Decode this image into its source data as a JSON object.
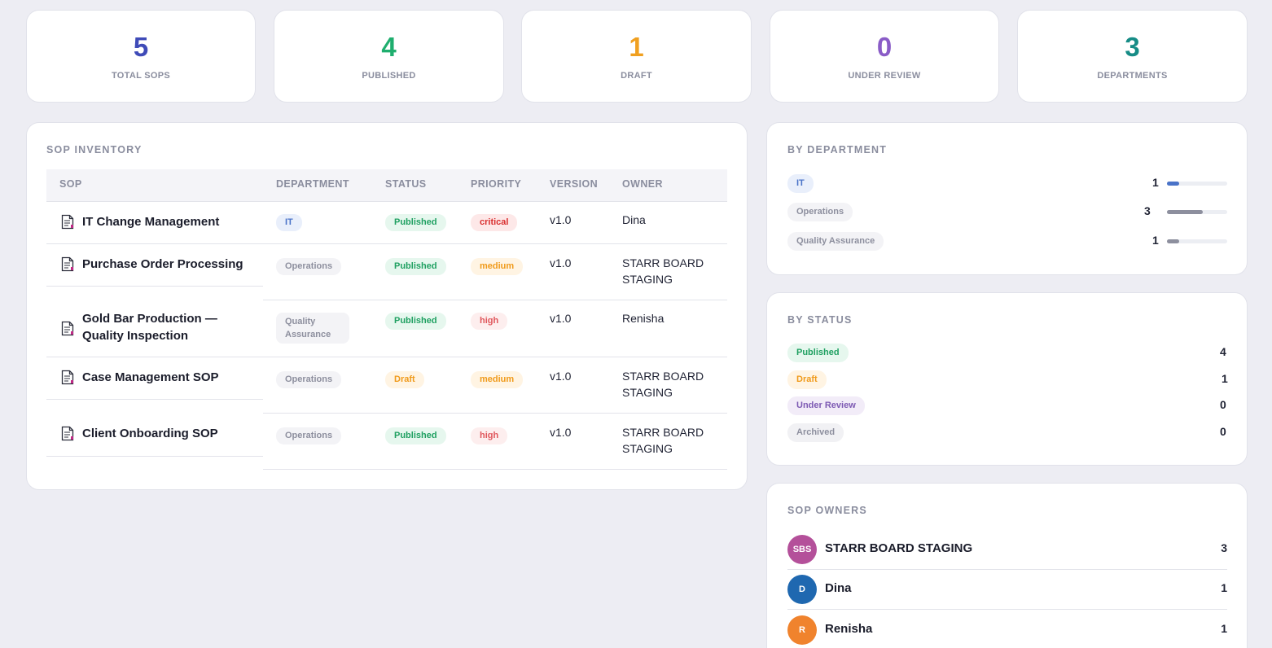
{
  "stats": [
    {
      "value": "5",
      "label": "TOTAL SOPS",
      "color": "#3f4bb8"
    },
    {
      "value": "4",
      "label": "PUBLISHED",
      "color": "#1fae6e"
    },
    {
      "value": "1",
      "label": "DRAFT",
      "color": "#f0a020"
    },
    {
      "value": "0",
      "label": "UNDER REVIEW",
      "color": "#8a5cc7"
    },
    {
      "value": "3",
      "label": "DEPARTMENTS",
      "color": "#168c86"
    }
  ],
  "inventory": {
    "title": "SOP INVENTORY",
    "columns": [
      "SOP",
      "DEPARTMENT",
      "STATUS",
      "PRIORITY",
      "VERSION",
      "OWNER"
    ],
    "rows": [
      {
        "name": "IT Change Management",
        "department": "IT",
        "status": "Published",
        "priority": "critical",
        "version": "v1.0",
        "owner": "Dina"
      },
      {
        "name": "Purchase Order Processing",
        "department": "Operations",
        "status": "Published",
        "priority": "medium",
        "version": "v1.0",
        "owner": "STARR BOARD STAGING"
      },
      {
        "name": "Gold Bar Production — Quality Inspection",
        "department": "Quality Assurance",
        "status": "Published",
        "priority": "high",
        "version": "v1.0",
        "owner": "Renisha"
      },
      {
        "name": "Case Management SOP",
        "department": "Operations",
        "status": "Draft",
        "priority": "medium",
        "version": "v1.0",
        "owner": "STARR BOARD STAGING"
      },
      {
        "name": "Client Onboarding SOP",
        "department": "Operations",
        "status": "Published",
        "priority": "high",
        "version": "v1.0",
        "owner": "STARR BOARD STAGING"
      }
    ]
  },
  "by_department": {
    "title": "BY DEPARTMENT",
    "items": [
      {
        "label": "IT",
        "count": "1",
        "fraction": 0.2,
        "bar_color": "#4a73c8"
      },
      {
        "label": "Operations",
        "count": "3",
        "fraction": 0.6,
        "bar_color": "#8d8f9e"
      },
      {
        "label": "Quality Assurance",
        "count": "1",
        "fraction": 0.2,
        "bar_color": "#8d8f9e"
      }
    ]
  },
  "by_status": {
    "title": "BY STATUS",
    "items": [
      {
        "label": "Published",
        "count": "4"
      },
      {
        "label": "Draft",
        "count": "1"
      },
      {
        "label": "Under Review",
        "count": "0"
      },
      {
        "label": "Archived",
        "count": "0"
      }
    ]
  },
  "owners": {
    "title": "SOP OWNERS",
    "items": [
      {
        "initials": "SBS",
        "name": "STARR BOARD STAGING",
        "count": "3",
        "avatar_color": "#b4509a"
      },
      {
        "initials": "D",
        "name": "Dina",
        "count": "1",
        "avatar_color": "#1f68b0"
      },
      {
        "initials": "R",
        "name": "Renisha",
        "count": "1",
        "avatar_color": "#f0832d"
      }
    ]
  }
}
